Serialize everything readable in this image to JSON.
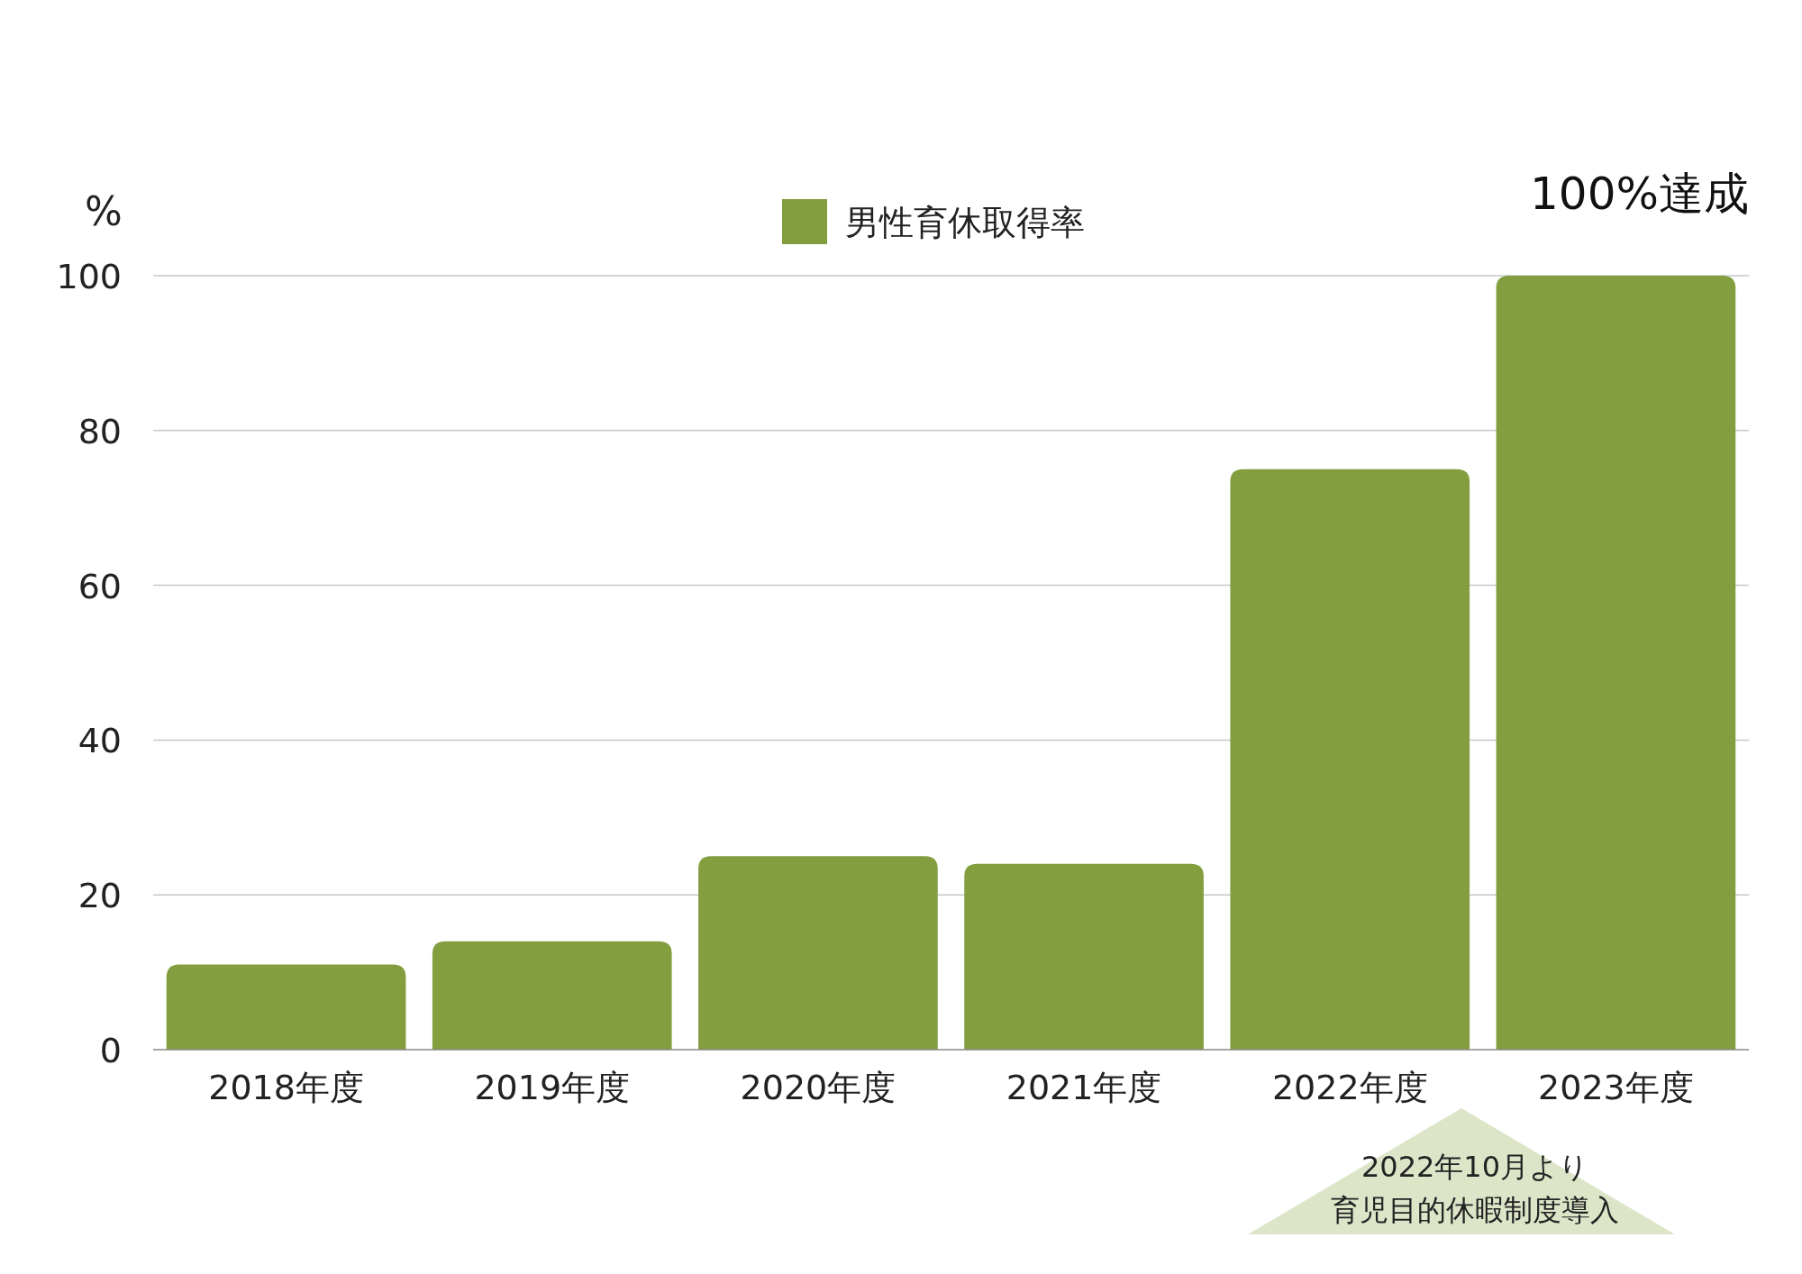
{
  "chart_data": {
    "type": "bar",
    "ylabel": "%",
    "categories": [
      "2018年度",
      "2019年度",
      "2020年度",
      "2021年度",
      "2022年度",
      "2023年度"
    ],
    "series": [
      {
        "name": "男性育休取得率",
        "color": "#829e3e",
        "values": [
          11,
          14,
          25,
          24,
          75,
          100
        ]
      }
    ],
    "ylim": [
      0,
      100
    ],
    "yticks": [
      0,
      20,
      40,
      60,
      80,
      100
    ],
    "grid": "y",
    "legend": "top",
    "annotations": [
      "100%達成",
      "2022年10月より",
      "育児目的休暇制度導入"
    ]
  }
}
